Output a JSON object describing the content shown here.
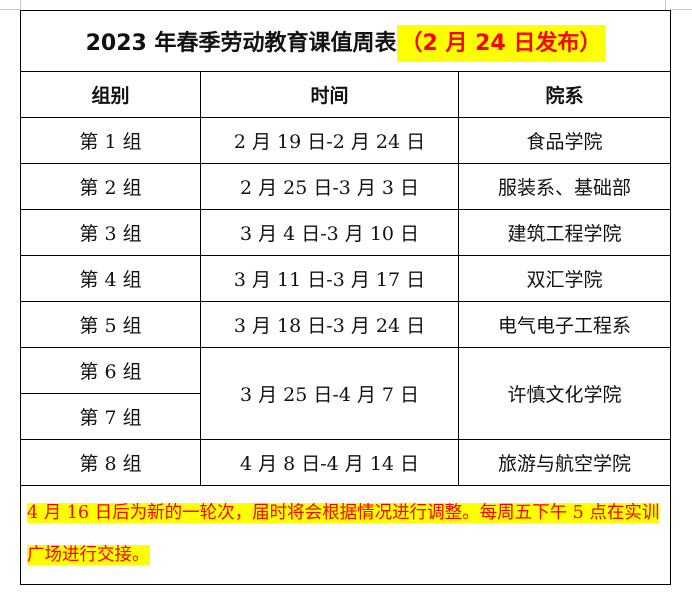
{
  "title": {
    "main": "2023 年春季劳动教育课值周表",
    "highlight": "（2 月 24 日发布）"
  },
  "headers": [
    "组别",
    "时间",
    "院系"
  ],
  "rows": [
    {
      "group": "第 1 组",
      "time": "2 月 19 日-2 月 24 日",
      "dept": "食品学院"
    },
    {
      "group": "第 2 组",
      "time": "2 月 25 日-3 月 3 日",
      "dept": "服装系、基础部"
    },
    {
      "group": "第 3 组",
      "time": "3 月 4 日-3 月 10 日",
      "dept": "建筑工程学院"
    },
    {
      "group": "第 4 组",
      "time": "3 月 11 日-3 月 17 日",
      "dept": "双汇学院"
    },
    {
      "group": "第 5 组",
      "time": "3 月 18 日-3 月 24 日",
      "dept": "电气电子工程系"
    },
    {
      "group": "第 6 组",
      "time": "3 月 25 日-4 月 7 日",
      "dept": "许慎文化学院"
    },
    {
      "group": "第 7 组"
    },
    {
      "group": "第 8 组",
      "time": "4 月 8 日-4 月 14 日",
      "dept": "旅游与航空学院"
    }
  ],
  "note": "4 月 16 日后为新的一轮次，届时将会根据情况进行调整。每周五下午 5 点在实训广场进行交接。",
  "colors": {
    "highlight_bg": "#ffff00",
    "highlight_text": "#ff0000"
  }
}
